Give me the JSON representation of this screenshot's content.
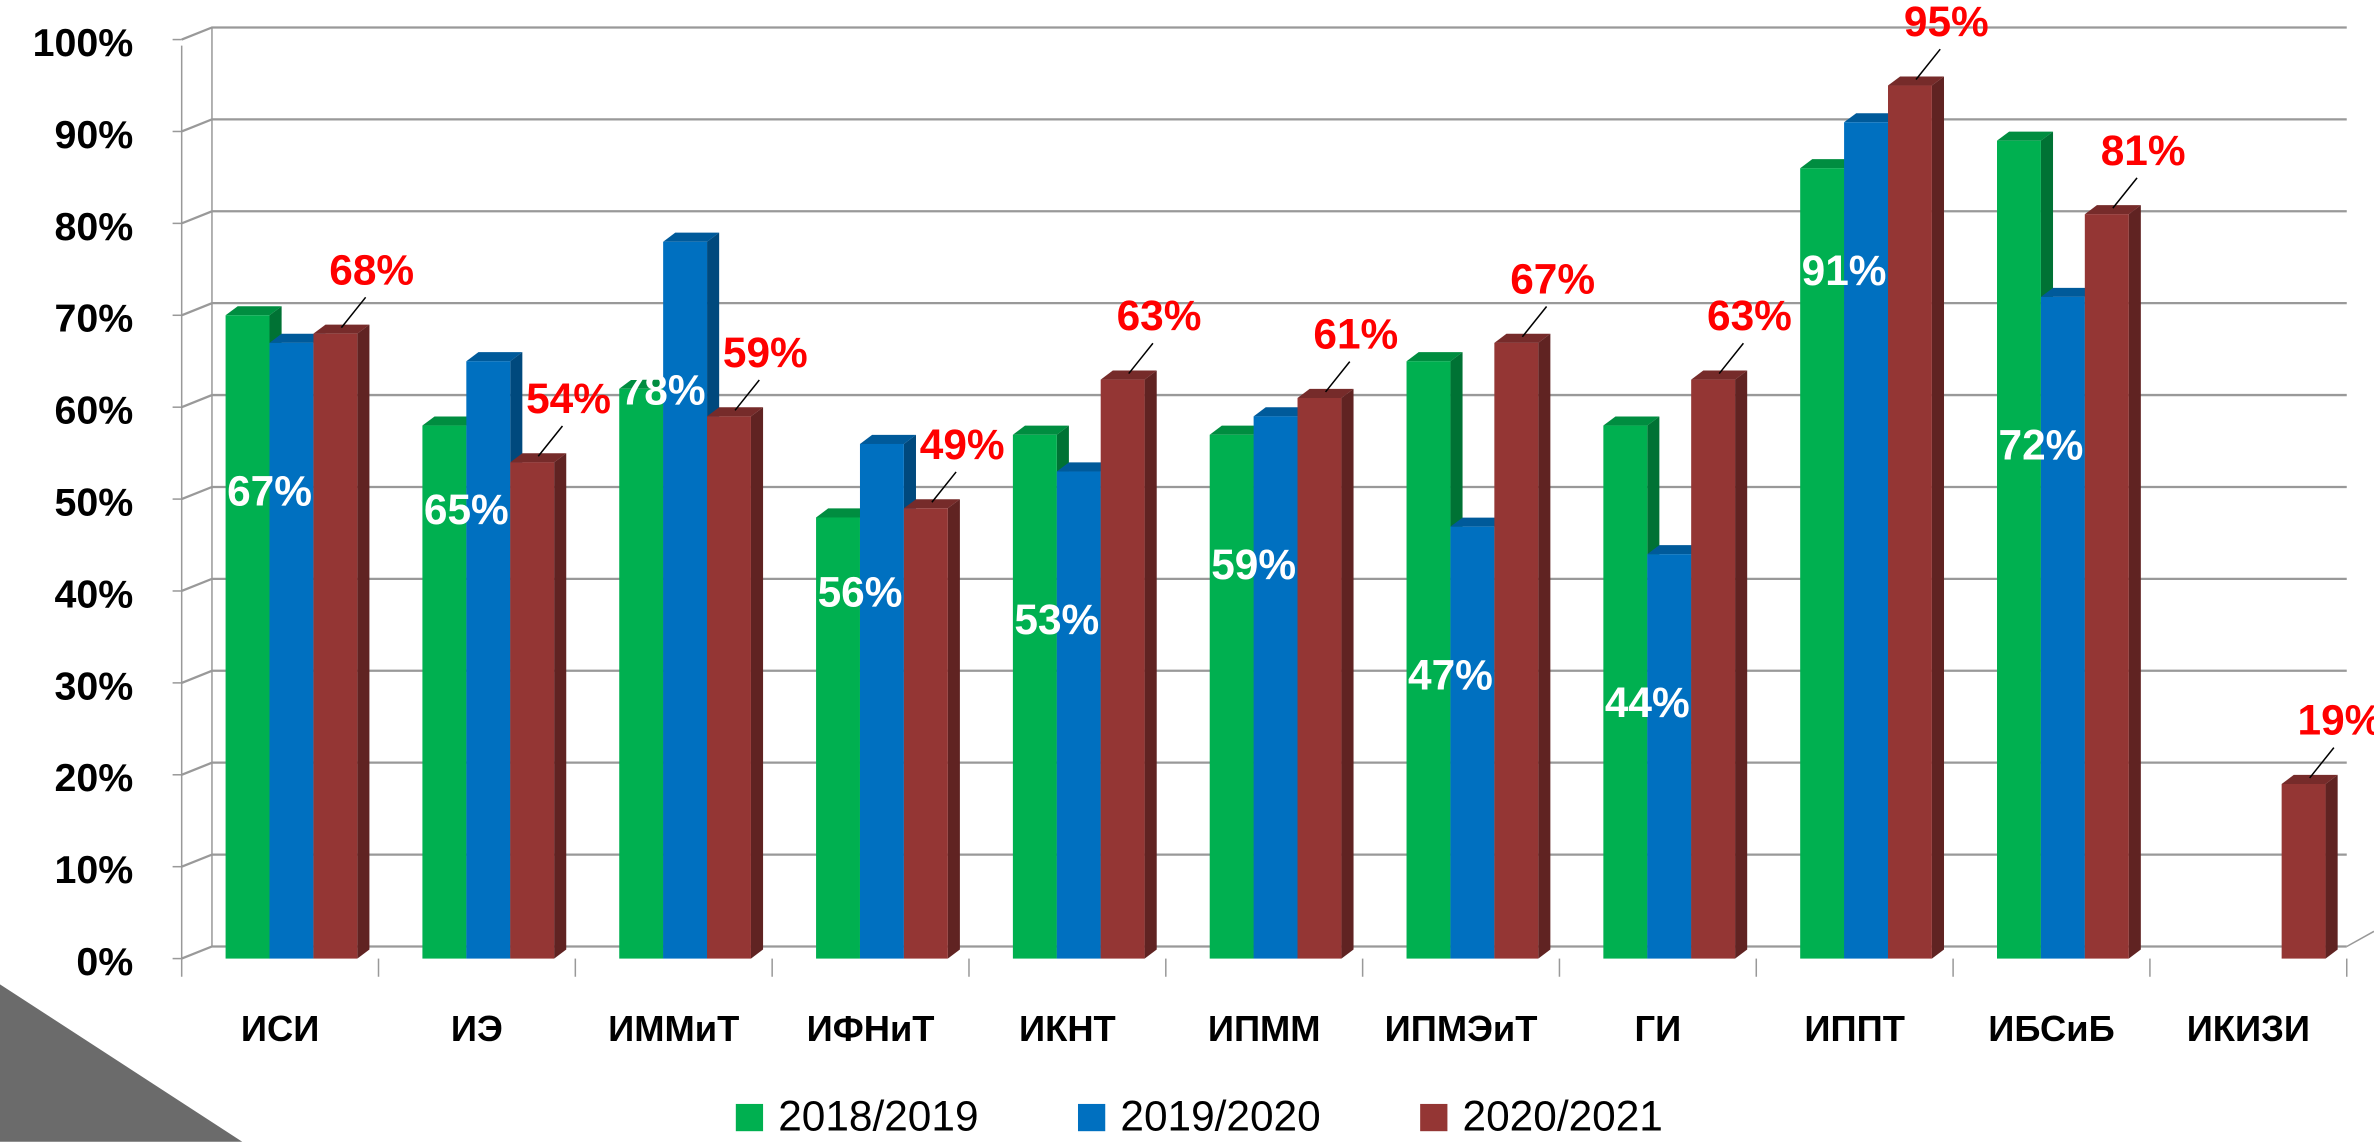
{
  "chart_data": {
    "type": "bar",
    "categories": [
      "ИСИ",
      "ИЭ",
      "ИММиТ",
      "ИФНиТ",
      "ИКНТ",
      "ИПММ",
      "ИПМЭиТ",
      "ГИ",
      "ИППТ",
      "ИБСиБ",
      "ИКИЗИ"
    ],
    "series": [
      {
        "name": "2018/2019",
        "color": "#00b050",
        "values": [
          70,
          58,
          62,
          48,
          57,
          57,
          65,
          58,
          86,
          89,
          null
        ]
      },
      {
        "name": "2019/2020",
        "color": "#0070c0",
        "values": [
          67,
          65,
          78,
          56,
          53,
          59,
          47,
          44,
          91,
          72,
          null
        ],
        "value_labels": [
          "67%",
          "65%",
          "78%",
          "56%",
          "53%",
          "59%",
          "47%",
          "44%",
          "91%",
          "72%",
          null
        ]
      },
      {
        "name": "2020/2021",
        "color": "#943634",
        "values": [
          68,
          54,
          59,
          49,
          63,
          61,
          67,
          63,
          95,
          81,
          19
        ],
        "value_labels": [
          "68%",
          "54%",
          "59%",
          "49%",
          "63%",
          "61%",
          "67%",
          "63%",
          "95%",
          "81%",
          "19%"
        ]
      }
    ],
    "ylim": [
      0,
      100
    ],
    "yticks": [
      {
        "value": 0,
        "label": "0%"
      },
      {
        "value": 10,
        "label": "10%"
      },
      {
        "value": 20,
        "label": "20%"
      },
      {
        "value": 30,
        "label": "30%"
      },
      {
        "value": 40,
        "label": "40%"
      },
      {
        "value": 50,
        "label": "50%"
      },
      {
        "value": 60,
        "label": "60%"
      },
      {
        "value": 70,
        "label": "70%"
      },
      {
        "value": 80,
        "label": "80%"
      },
      {
        "value": 90,
        "label": "90%"
      },
      {
        "value": 100,
        "label": "100%"
      }
    ],
    "grid": true,
    "legend": "bottom"
  }
}
